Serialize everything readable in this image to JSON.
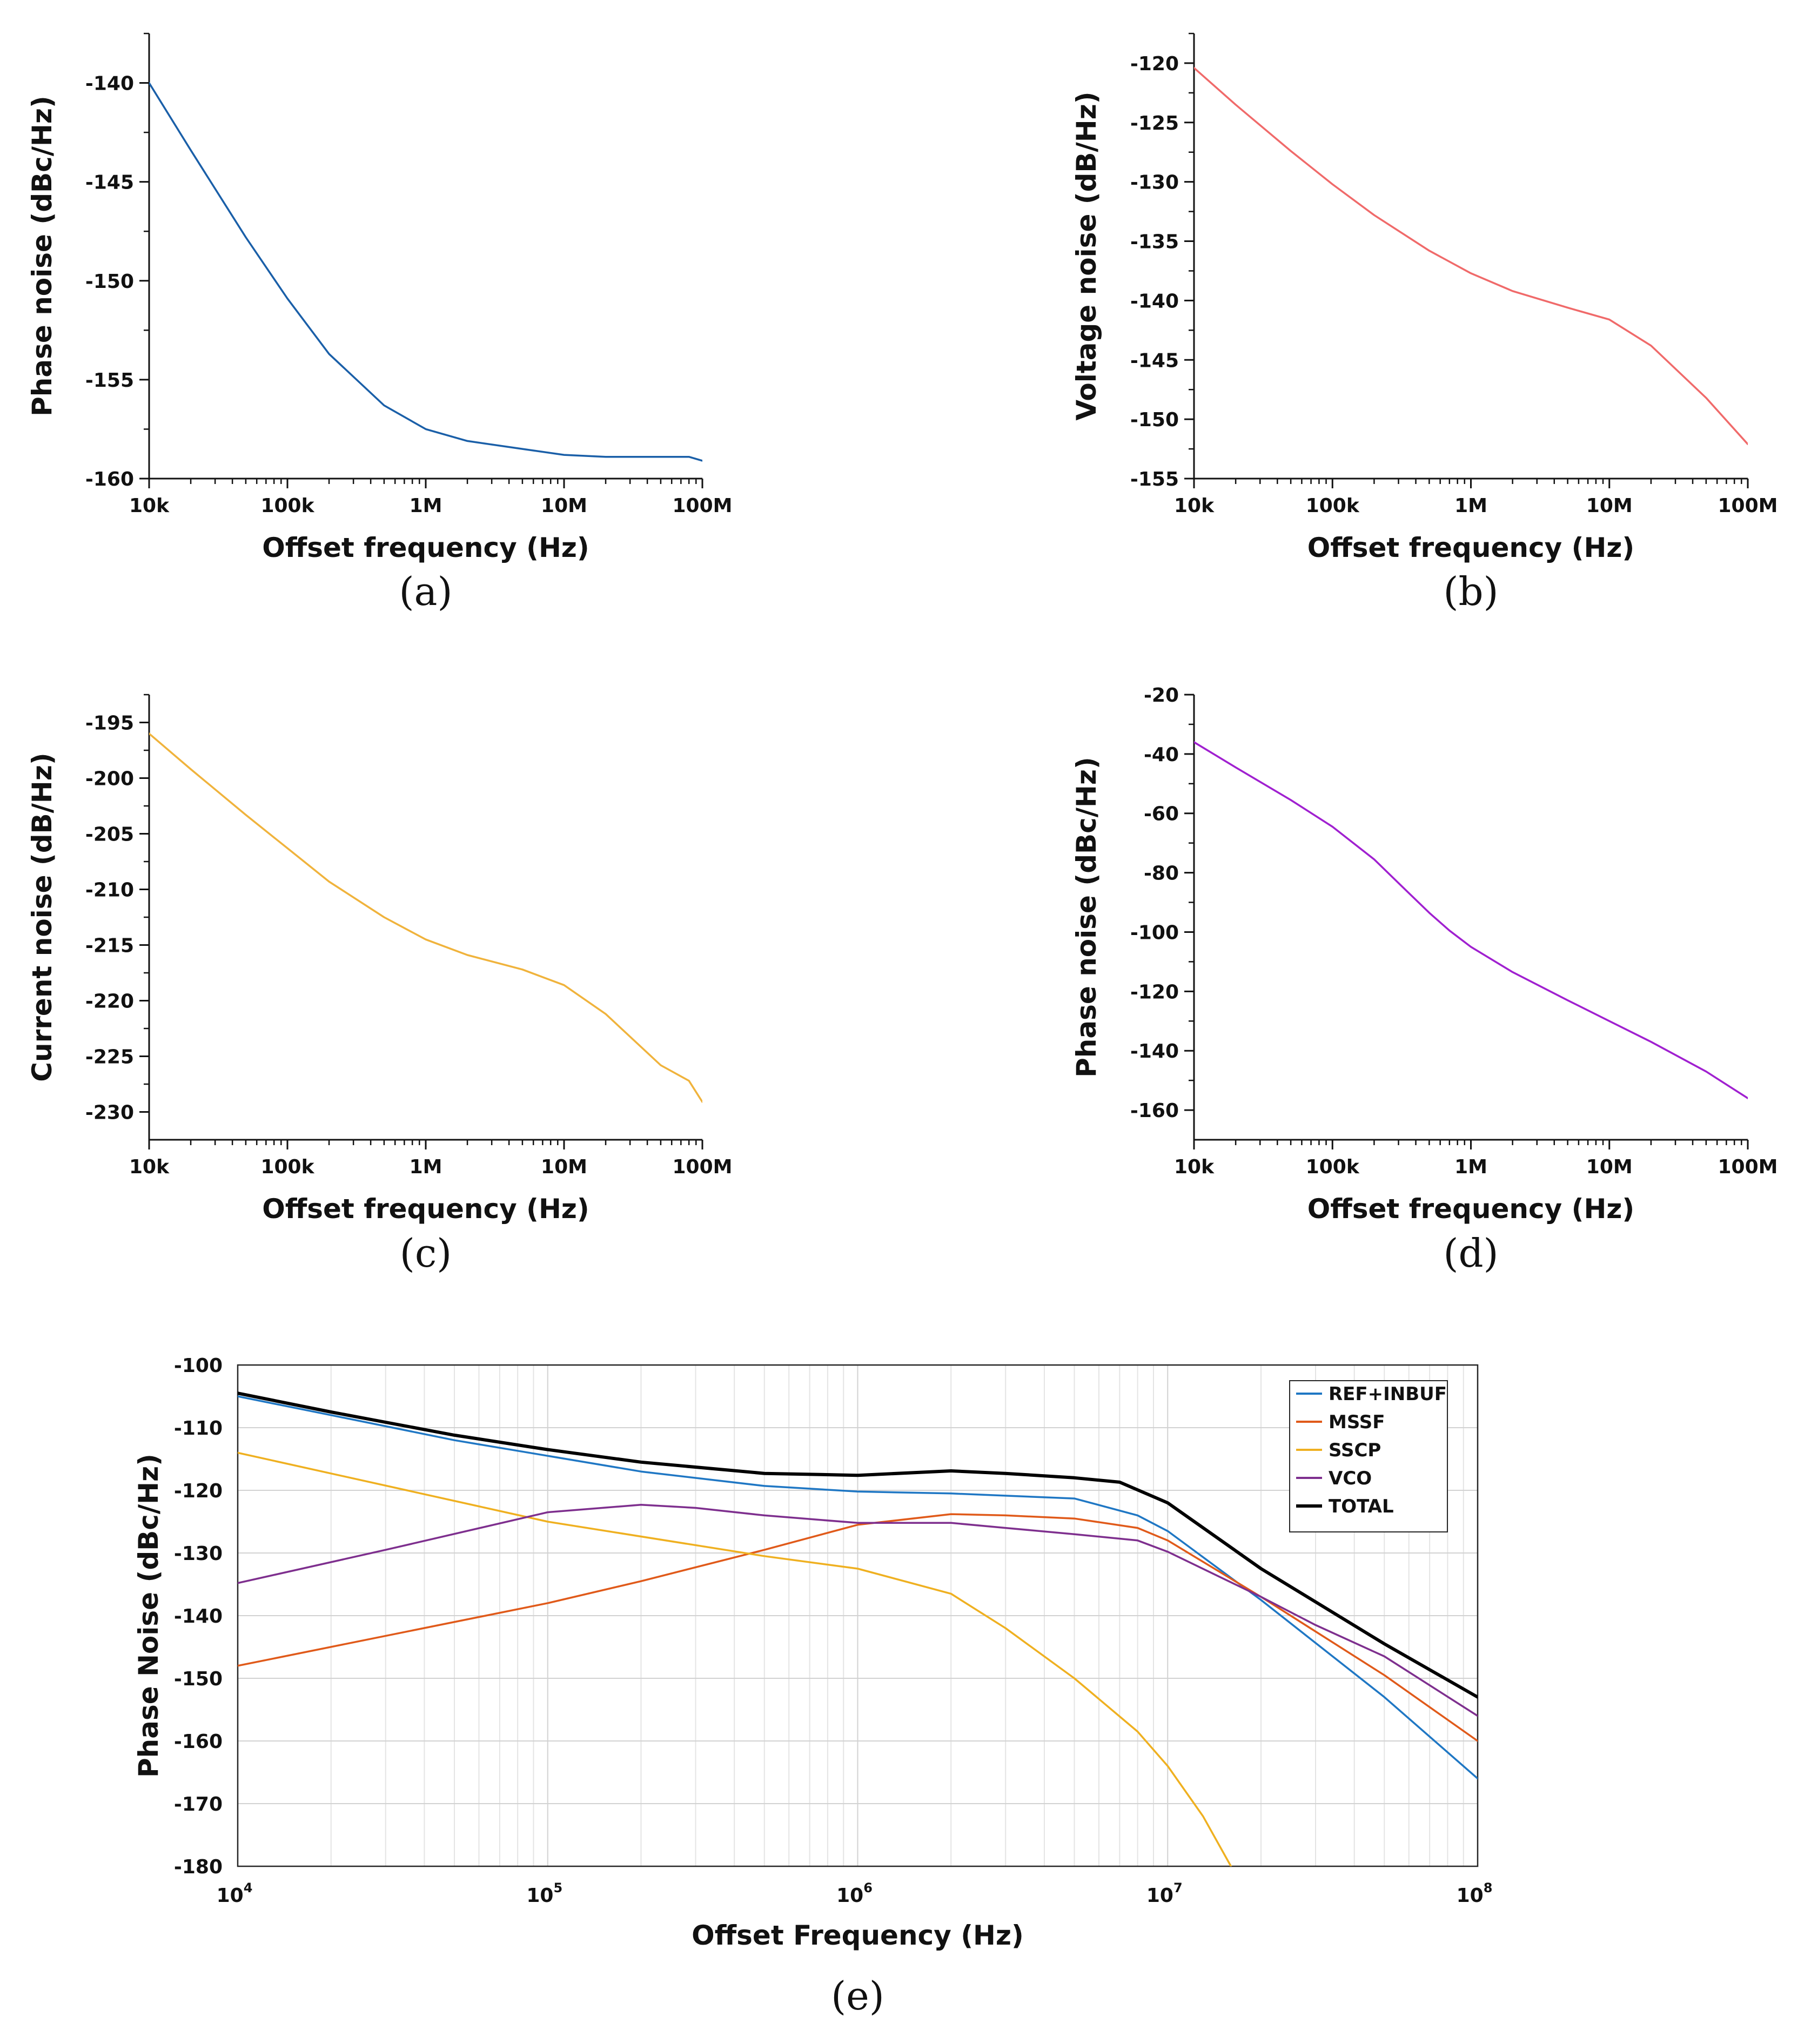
{
  "chart_data": [
    {
      "id": "a",
      "type": "line",
      "caption": "(a)",
      "xlabel": "Offset frequency (Hz)",
      "ylabel": "Phase noise (dBc/Hz)",
      "xscale": "log",
      "xlim": [
        10000,
        100000000
      ],
      "ylim": [
        -160,
        -137.5
      ],
      "xticks": [
        10000,
        100000,
        1000000,
        10000000,
        100000000
      ],
      "xtick_labels": [
        "10k",
        "100k",
        "1M",
        "10M",
        "100M"
      ],
      "yticks": [
        -160,
        -155,
        -150,
        -145,
        -140
      ],
      "ytick_labels": [
        "-160",
        "-155",
        "-150",
        "-145",
        "-140"
      ],
      "color": "#1a5fa8",
      "series": [
        {
          "name": "Phase noise",
          "x": [
            10000,
            20000,
            50000,
            100000,
            200000,
            500000,
            1000000,
            2000000,
            5000000,
            10000000,
            20000000,
            50000000,
            80000000,
            100000000
          ],
          "y": [
            -140,
            -143.4,
            -147.8,
            -150.9,
            -153.7,
            -156.3,
            -157.5,
            -158.1,
            -158.5,
            -158.8,
            -158.9,
            -158.9,
            -158.9,
            -159.1
          ]
        }
      ]
    },
    {
      "id": "b",
      "type": "line",
      "caption": "(b)",
      "xlabel": "Offset frequency (Hz)",
      "ylabel": "Voltage noise (dB/Hz)",
      "xscale": "log",
      "xlim": [
        10000,
        100000000
      ],
      "ylim": [
        -155,
        -117.5
      ],
      "xticks": [
        10000,
        100000,
        1000000,
        10000000,
        100000000
      ],
      "xtick_labels": [
        "10k",
        "100k",
        "1M",
        "10M",
        "100M"
      ],
      "yticks": [
        -155,
        -150,
        -145,
        -140,
        -135,
        -130,
        -125,
        -120
      ],
      "ytick_labels": [
        "-155",
        "-150",
        "-145",
        "-140",
        "-135",
        "-130",
        "-125",
        "-120"
      ],
      "color": "#f06a6a",
      "series": [
        {
          "name": "Voltage noise",
          "x": [
            10000,
            20000,
            50000,
            100000,
            200000,
            500000,
            1000000,
            2000000,
            5000000,
            10000000,
            20000000,
            50000000,
            100000000
          ],
          "y": [
            -120.4,
            -123.5,
            -127.4,
            -130.2,
            -132.8,
            -135.8,
            -137.7,
            -139.2,
            -140.6,
            -141.6,
            -143.8,
            -148.2,
            -152.1
          ]
        }
      ]
    },
    {
      "id": "c",
      "type": "line",
      "caption": "(c)",
      "xlabel": "Offset frequency (Hz)",
      "ylabel": "Current noise (dB/Hz)",
      "xscale": "log",
      "xlim": [
        10000,
        100000000
      ],
      "ylim": [
        -232.5,
        -192.5
      ],
      "xticks": [
        10000,
        100000,
        1000000,
        10000000,
        100000000
      ],
      "xtick_labels": [
        "10k",
        "100k",
        "1M",
        "10M",
        "100M"
      ],
      "yticks": [
        -230,
        -225,
        -220,
        -215,
        -210,
        -205,
        -200,
        -195
      ],
      "ytick_labels": [
        "-230",
        "-225",
        "-220",
        "-215",
        "-210",
        "-205",
        "-200",
        "-195"
      ],
      "color": "#f0b33c",
      "series": [
        {
          "name": "Current noise",
          "x": [
            10000,
            20000,
            50000,
            100000,
            200000,
            500000,
            1000000,
            2000000,
            5000000,
            10000000,
            20000000,
            50000000,
            80000000,
            100000000
          ],
          "y": [
            -196,
            -199.2,
            -203.3,
            -206.3,
            -209.3,
            -212.5,
            -214.5,
            -215.9,
            -217.2,
            -218.6,
            -221.2,
            -225.8,
            -227.2,
            -229.1
          ]
        }
      ]
    },
    {
      "id": "d",
      "type": "line",
      "caption": "(d)",
      "xlabel": "Offset frequency (Hz)",
      "ylabel": "Phase noise (dBc/Hz)",
      "xscale": "log",
      "xlim": [
        10000,
        100000000
      ],
      "ylim": [
        -170,
        -20
      ],
      "xticks": [
        10000,
        100000,
        1000000,
        10000000,
        100000000
      ],
      "xtick_labels": [
        "10k",
        "100k",
        "1M",
        "10M",
        "100M"
      ],
      "yticks": [
        -160,
        -140,
        -120,
        -100,
        -80,
        -60,
        -40,
        -20
      ],
      "ytick_labels": [
        "-160",
        "-140",
        "-120",
        "-100",
        "-80",
        "-60",
        "-40",
        "-20"
      ],
      "color": "#a020d0",
      "series": [
        {
          "name": "Phase noise",
          "x": [
            10000,
            20000,
            50000,
            100000,
            200000,
            300000,
            500000,
            700000,
            1000000,
            2000000,
            5000000,
            10000000,
            20000000,
            50000000,
            100000000
          ],
          "y": [
            -36,
            -44.5,
            -55.5,
            -64.5,
            -75.5,
            -83.5,
            -93.5,
            -99.5,
            -105,
            -113.5,
            -123,
            -130,
            -137,
            -147,
            -156
          ]
        }
      ]
    },
    {
      "id": "e",
      "type": "line",
      "caption": "(e)",
      "xlabel": "Offset Frequency (Hz)",
      "ylabel": "Phase Noise (dBc/Hz)",
      "xscale": "log",
      "xlim": [
        10000,
        100000000
      ],
      "ylim": [
        -180,
        -100
      ],
      "grid": true,
      "legend": "top-right",
      "xticks": [
        10000,
        100000,
        1000000,
        10000000,
        100000000
      ],
      "xtick_labels": [
        [
          "10",
          "4"
        ],
        [
          "10",
          "5"
        ],
        [
          "10",
          "6"
        ],
        [
          "10",
          "7"
        ],
        [
          "10",
          "8"
        ]
      ],
      "yticks": [
        -180,
        -170,
        -160,
        -150,
        -140,
        -130,
        -120,
        -110,
        -100
      ],
      "ytick_labels": [
        "-180",
        "-170",
        "-160",
        "-150",
        "-140",
        "-130",
        "-120",
        "-110",
        "-100"
      ],
      "series": [
        {
          "name": "REF+INBUF",
          "color": "#1f77c4",
          "x": [
            10000,
            20000,
            50000,
            100000,
            200000,
            500000,
            1000000,
            2000000,
            5000000,
            8000000,
            10000000,
            20000000,
            50000000,
            100000000
          ],
          "y": [
            -105,
            -108,
            -112,
            -114.5,
            -117,
            -119.3,
            -120.2,
            -120.5,
            -121.3,
            -124,
            -126.5,
            -137.5,
            -153,
            -166
          ]
        },
        {
          "name": "MSSF",
          "color": "#e05a1a",
          "x": [
            10000,
            100000,
            200000,
            500000,
            1000000,
            2000000,
            3000000,
            5000000,
            8000000,
            10000000,
            20000000,
            50000000,
            100000000
          ],
          "y": [
            -148,
            -138,
            -134.5,
            -129.5,
            -125.5,
            -123.8,
            -124,
            -124.5,
            -126,
            -128,
            -137,
            -149.5,
            -160
          ]
        },
        {
          "name": "SSCP",
          "color": "#efb020",
          "x": [
            10000,
            100000,
            500000,
            1000000,
            2000000,
            3000000,
            5000000,
            8000000,
            10000000,
            13000000,
            16000000
          ],
          "y": [
            -114,
            -125,
            -130.5,
            -132.5,
            -136.5,
            -142,
            -150,
            -158.5,
            -164,
            -172,
            -180
          ]
        },
        {
          "name": "VCO",
          "color": "#7e2f8e",
          "x": [
            10000,
            30000,
            100000,
            200000,
            300000,
            500000,
            1000000,
            2000000,
            3000000,
            5000000,
            8000000,
            10000000,
            20000000,
            30000000,
            50000000,
            100000000
          ],
          "y": [
            -134.8,
            -129.5,
            -123.5,
            -122.3,
            -122.8,
            -124,
            -125.2,
            -125.2,
            -126,
            -127,
            -128,
            -129.8,
            -137,
            -141.5,
            -146.5,
            -156
          ]
        },
        {
          "name": "TOTAL",
          "color": "#000000",
          "x": [
            10000,
            20000,
            50000,
            100000,
            200000,
            500000,
            1000000,
            2000000,
            3000000,
            5000000,
            7000000,
            10000000,
            20000000,
            50000000,
            100000000
          ],
          "y": [
            -104.5,
            -107.5,
            -111.2,
            -113.5,
            -115.5,
            -117.3,
            -117.6,
            -116.9,
            -117.3,
            -118,
            -118.7,
            -122,
            -132.5,
            -144.5,
            -153
          ]
        }
      ]
    }
  ]
}
